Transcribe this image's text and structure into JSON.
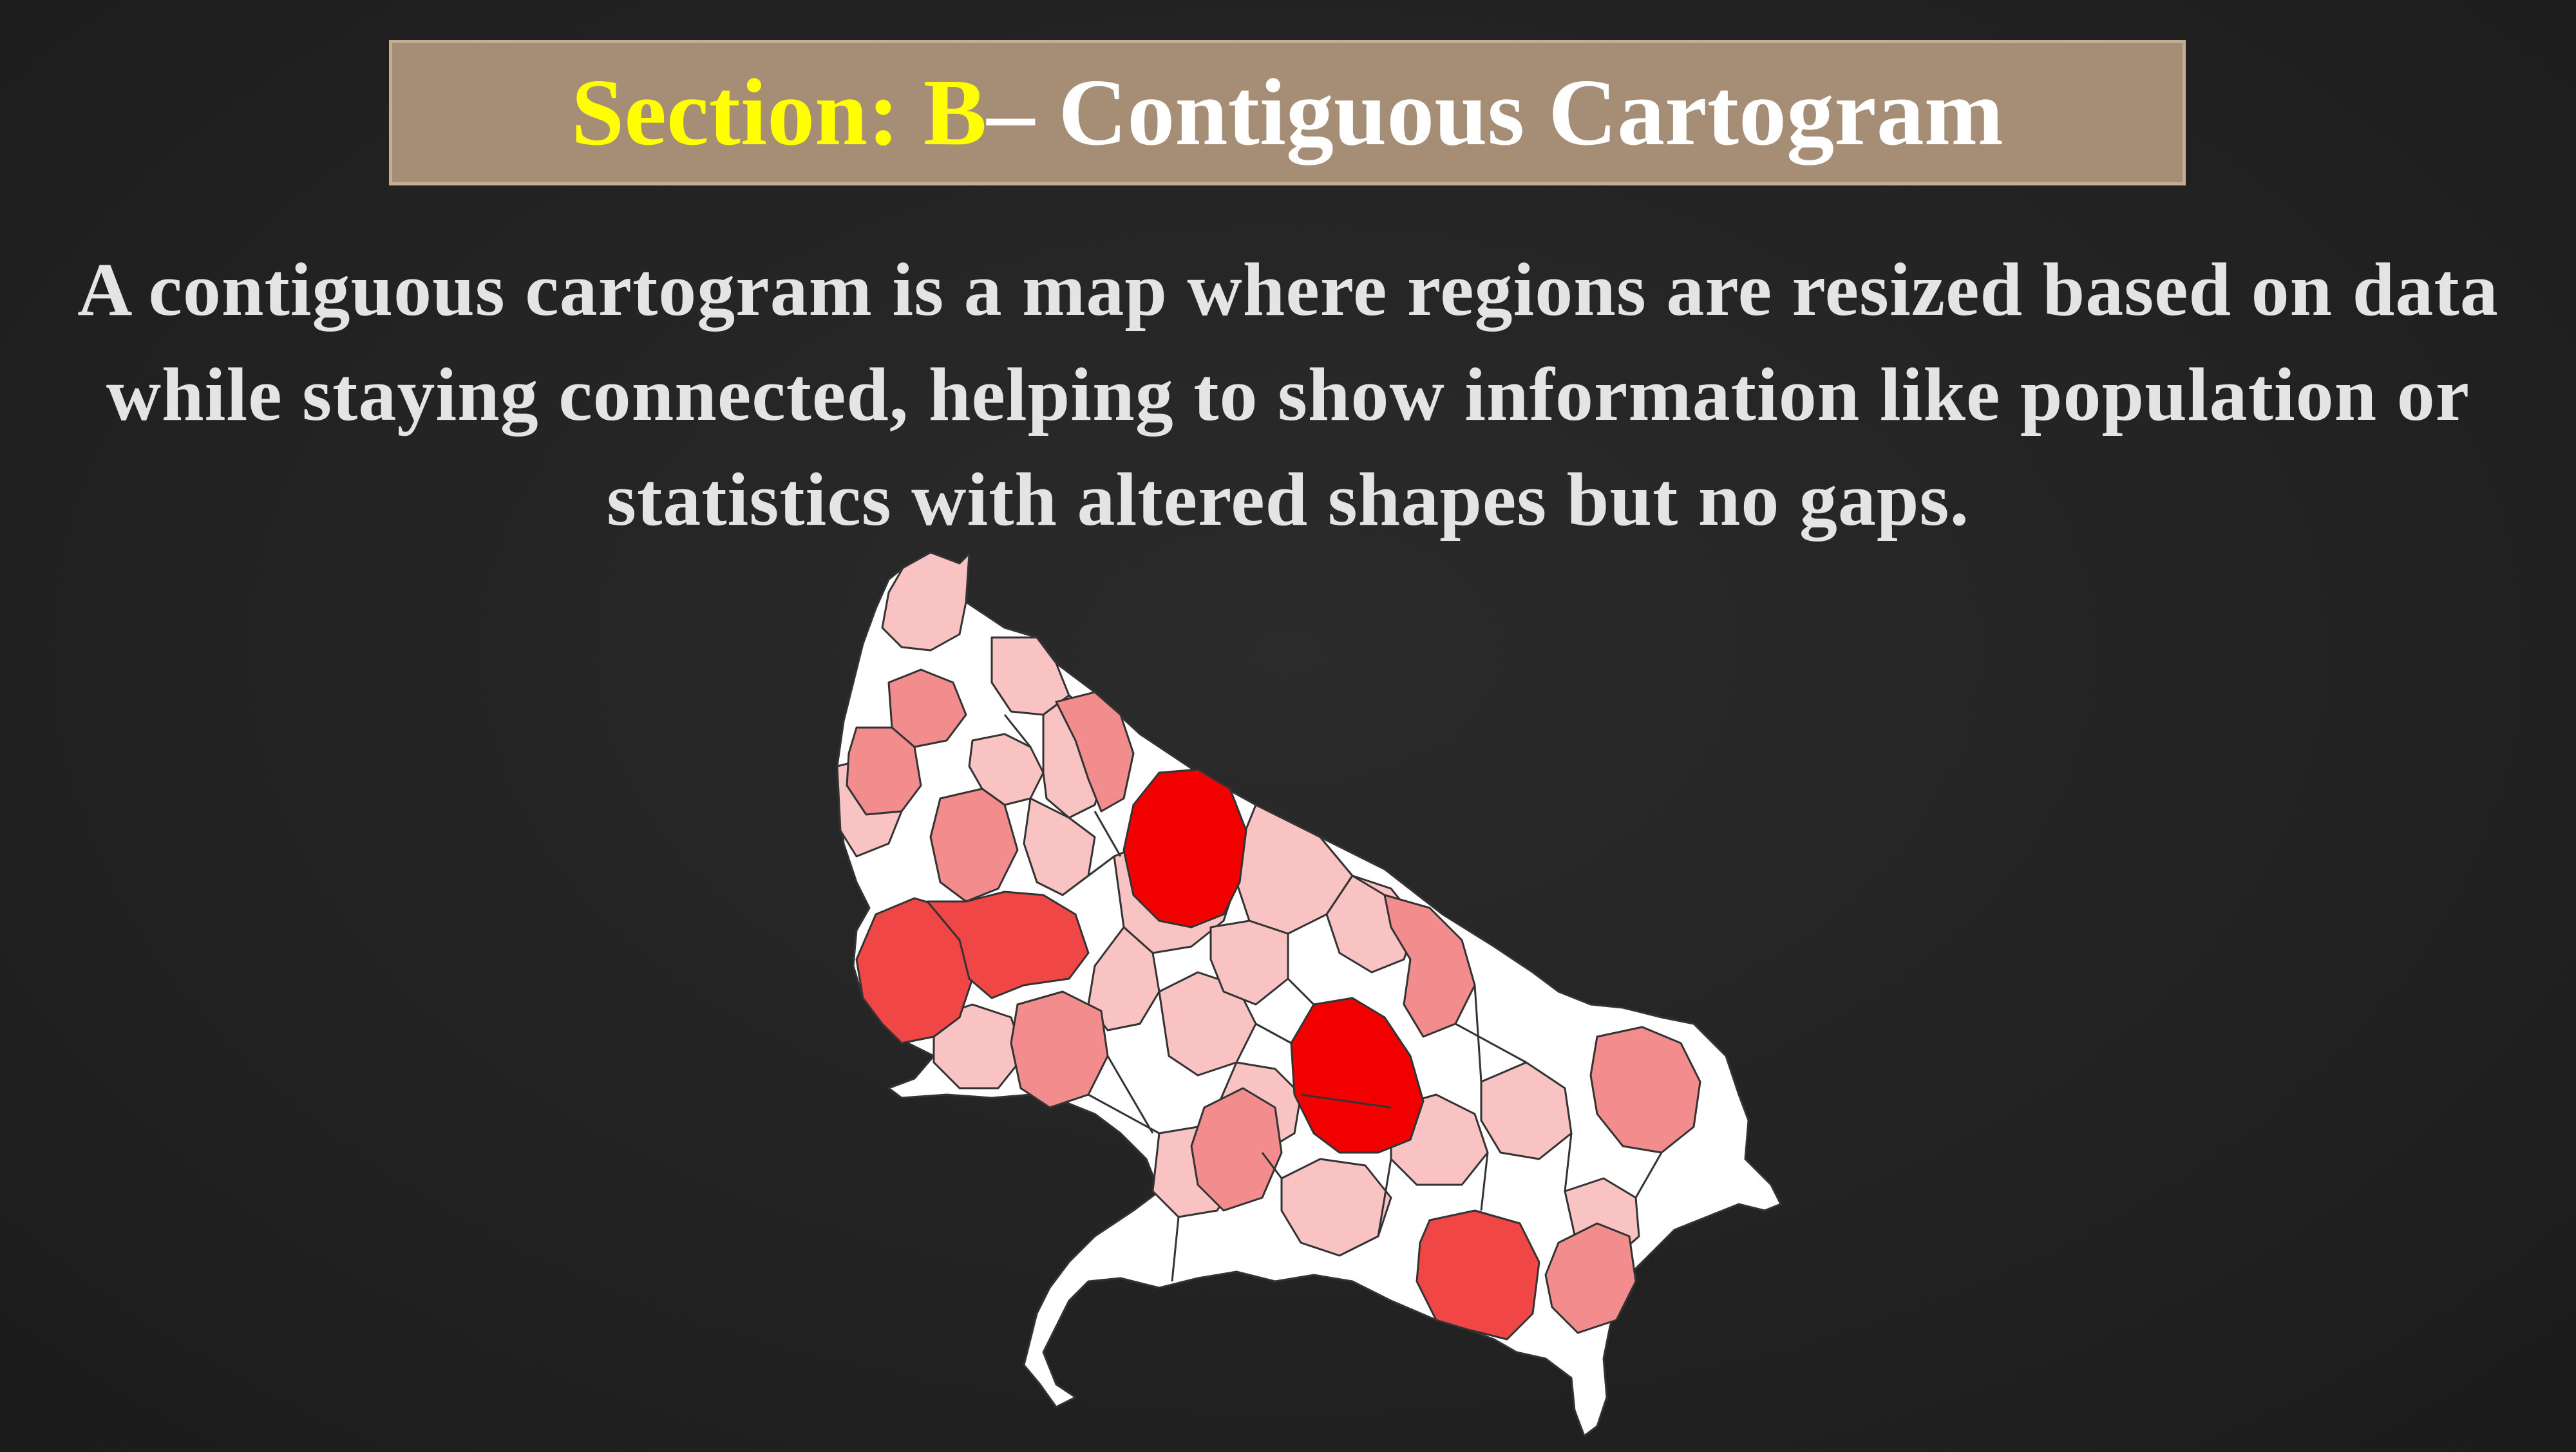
{
  "title": {
    "section_label": "Section: B",
    "rest": " – Contiguous Cartogram"
  },
  "description": "A contiguous cartogram is a map where regions are resized based on data while staying connected, helping to show information like population or statistics with altered shapes but no gaps.",
  "map": {
    "type": "contiguous cartogram",
    "colors": {
      "background": "#232323",
      "title_box": "#a68d75",
      "title_section": "#ffff00",
      "title_text": "#ffffff",
      "text": "#e4e4e4",
      "class_white": "#ffffff",
      "class_light": "#f9c3c3",
      "class_medium": "#f38c8c",
      "class_dark": "#f04646",
      "class_max": "#f20000"
    }
  }
}
